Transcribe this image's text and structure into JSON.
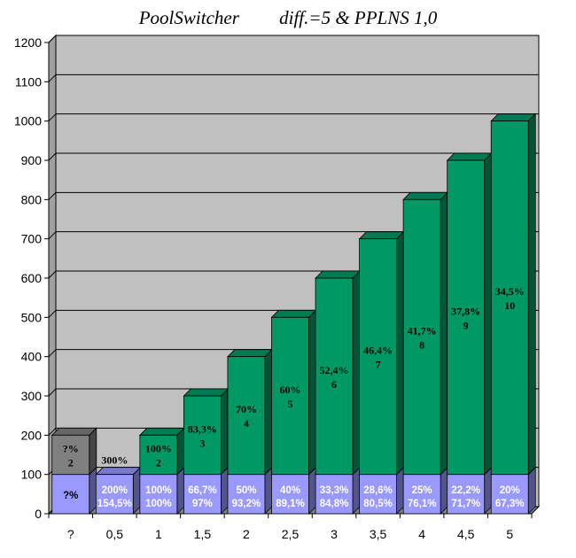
{
  "chart_data": {
    "type": "bar",
    "title_left": "PoolSwitcher",
    "title_right": "diff.=5  &  PPLNS 1,0",
    "ylim": [
      0,
      1200
    ],
    "y_ticks": [
      0,
      100,
      200,
      300,
      400,
      500,
      600,
      700,
      800,
      900,
      1000,
      1100,
      1200
    ],
    "categories": [
      "?",
      "0,5",
      "1",
      "1,5",
      "2",
      "2,5",
      "3",
      "3,5",
      "4",
      "4,5",
      "5"
    ],
    "series": [
      {
        "values": [
          100,
          100,
          100,
          100,
          100,
          100,
          100,
          100,
          100,
          100,
          100
        ],
        "labels_line1": [
          "?%",
          "200%",
          "100%",
          "66,7%",
          "50%",
          "40%",
          "33,3%",
          "28,6%",
          "25%",
          "22,2%",
          "20%"
        ],
        "labels_line2": [
          "",
          "154,5%",
          "100%",
          "97%",
          "93,2%",
          "89,1%",
          "84,8%",
          "80,5%",
          "76,1%",
          "71,7%",
          "67,3%"
        ]
      },
      {
        "values": [
          100,
          0,
          100,
          200,
          300,
          400,
          500,
          600,
          700,
          800,
          900
        ],
        "labels_line1": [
          "?%",
          "",
          "100%",
          "83,3%",
          "70%",
          "60%",
          "52,4%",
          "46,4%",
          "41,7%",
          "37,8%",
          "34,5%"
        ],
        "labels_line2": [
          "2",
          "",
          "2",
          "3",
          "4",
          "5",
          "6",
          "7",
          "8",
          "9",
          "10"
        ]
      }
    ],
    "extra_label": {
      "category": "0,5",
      "text": "300%"
    },
    "colors": {
      "bottom": "#9999ff",
      "top": "#009966",
      "top_unknown": "#808080",
      "plot_bg": "#c0c0c0",
      "wall": "#a0a0a0",
      "grid": "#000000"
    },
    "grid": true
  }
}
